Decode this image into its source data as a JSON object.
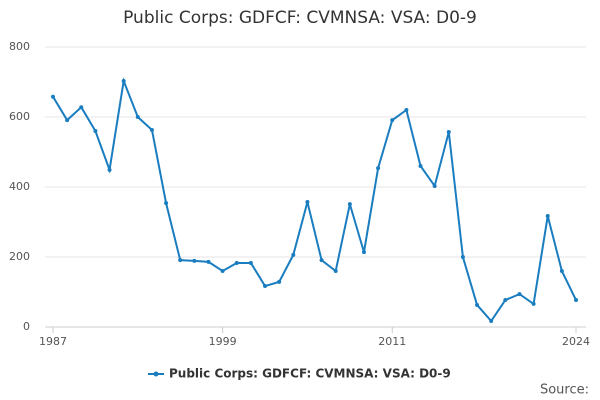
{
  "chart_data": {
    "type": "line",
    "title": "Public Corps: GDFCF: CVMNSA: VSA: D0-9",
    "x": [
      1987,
      1988,
      1989,
      1990,
      1991,
      1992,
      1993,
      1994,
      1995,
      1996,
      1997,
      1998,
      1999,
      2000,
      2001,
      2002,
      2003,
      2004,
      2005,
      2006,
      2007,
      2008,
      2009,
      2010,
      2011,
      2012,
      2013,
      2014,
      2015,
      2016,
      2017,
      2018,
      2019,
      2020,
      2021,
      2022,
      2023,
      2024
    ],
    "series": [
      {
        "name": "Public Corps: GDFCF: CVMNSA: VSA: D0-9",
        "color": "#1a7dc0",
        "values": [
          658,
          591,
          628,
          560,
          449,
          703,
          600,
          563,
          354,
          191,
          189,
          186,
          160,
          183,
          183,
          117,
          129,
          206,
          357,
          191,
          160,
          351,
          214,
          454,
          591,
          620,
          460,
          403,
          557,
          200,
          63,
          17,
          77,
          94,
          66,
          317,
          160,
          77
        ]
      }
    ],
    "xlim": [
      1987,
      2024
    ],
    "xticks": [
      1987,
      1999,
      2011,
      2024
    ],
    "ylim": [
      0,
      800
    ],
    "yticks": [
      0,
      200,
      400,
      600,
      800
    ],
    "grid": true,
    "source": "Source:"
  }
}
